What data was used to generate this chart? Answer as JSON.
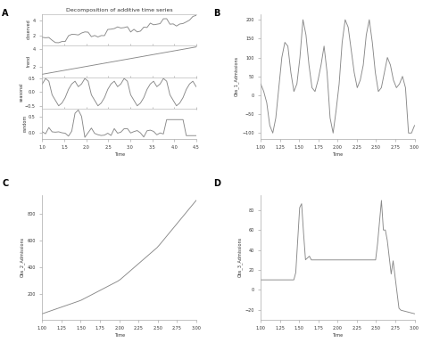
{
  "title_A": "Decomposition of additive time series",
  "xlabel_A": "Time",
  "line_color": "#888888",
  "label_B": "Obs_1_Admissions",
  "label_C": "Obs_2_Admissions",
  "label_D": "Obs_3_Admissions",
  "xlabel_BCD": "Time",
  "panel_labels": [
    "A",
    "B",
    "C",
    "D"
  ],
  "spine_color": "#aaaaaa",
  "obs_ylim": [
    0.5,
    5.0
  ],
  "trend_ylim": [
    1.0,
    5.0
  ],
  "seasonal_ylim": [
    -0.8,
    0.8
  ],
  "random_ylim": [
    -0.5,
    1.0
  ],
  "B_ylim": [
    -150,
    250
  ],
  "C_ylim": [
    0,
    1000
  ],
  "D_ylim": [
    -50,
    110
  ]
}
